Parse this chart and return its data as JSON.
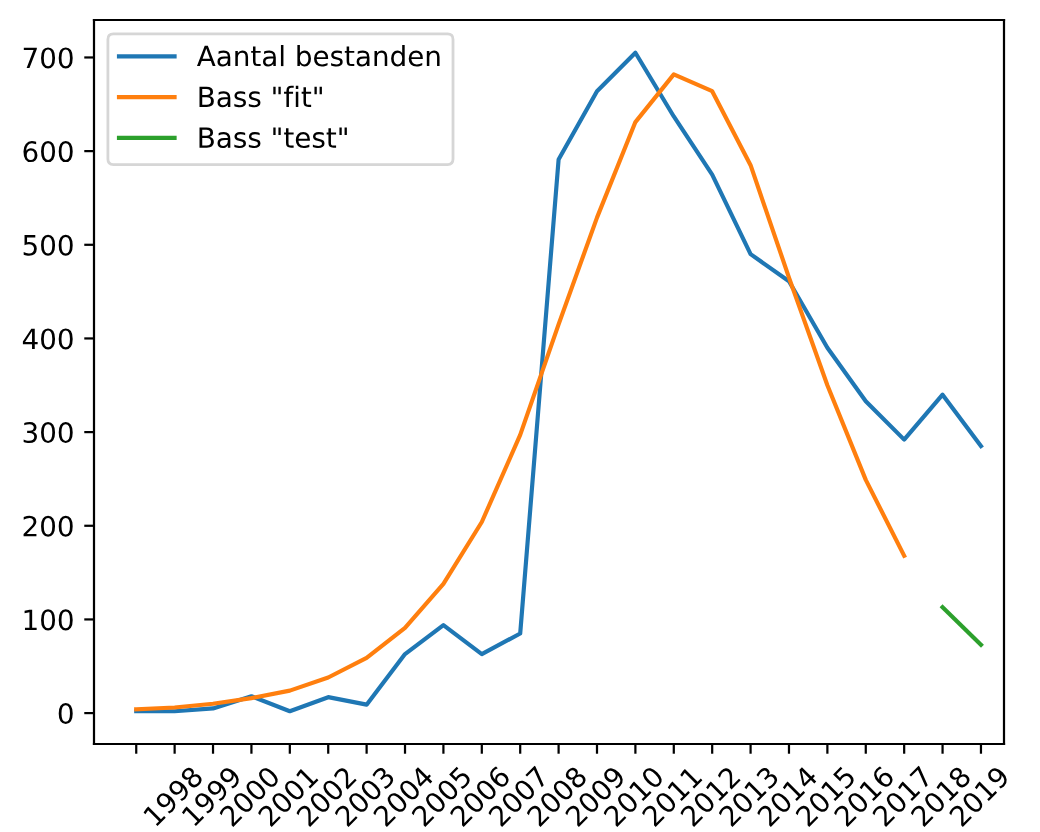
{
  "chart_data": {
    "type": "line",
    "categories": [
      null,
      "1998",
      "1999",
      "2000",
      "2001",
      "2002",
      "2003",
      "2004",
      "2005",
      "2006",
      "2007",
      "2008",
      "2009",
      "2010",
      "2011",
      "2012",
      "2013",
      "2014",
      "2015",
      "2016",
      "2017",
      "2018",
      "2019"
    ],
    "series": [
      {
        "name": "Aantal bestanden",
        "color": "#1f77b4",
        "values": [
          2,
          2,
          5,
          18,
          2,
          17,
          9,
          63,
          94,
          63,
          85,
          591,
          664,
          705,
          637,
          575,
          490,
          461,
          390,
          333,
          292,
          340,
          285
        ]
      },
      {
        "name": "Bass \"fit\"",
        "color": "#ff7f0e",
        "values": [
          4,
          6,
          10,
          16,
          24,
          38,
          59,
          91,
          138,
          204,
          297,
          415,
          529,
          631,
          682,
          664,
          585,
          465,
          350,
          249,
          168,
          null,
          null
        ]
      },
      {
        "name": "Bass \"test\"",
        "color": "#2ca02c",
        "values": [
          null,
          null,
          null,
          null,
          null,
          null,
          null,
          null,
          null,
          null,
          null,
          null,
          null,
          null,
          null,
          null,
          null,
          null,
          null,
          null,
          null,
          113,
          73
        ]
      }
    ],
    "ylim": [
      -33,
      740
    ],
    "yticks": [
      0,
      100,
      200,
      300,
      400,
      500,
      600,
      700
    ],
    "grid": false,
    "legend": "top left",
    "marker": "none",
    "line_style": "solid"
  }
}
